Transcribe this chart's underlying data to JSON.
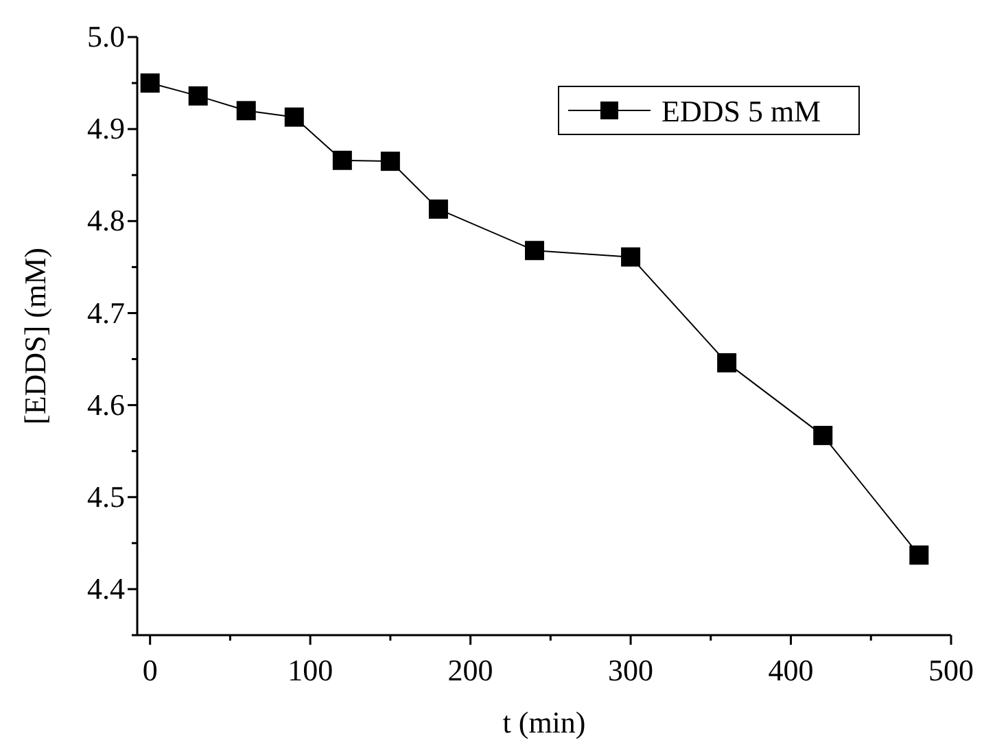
{
  "chart_data": {
    "type": "line",
    "xlabel": "t (min)",
    "ylabel": "[EDDS] (mM)",
    "x": [
      0,
      30,
      60,
      90,
      120,
      150,
      180,
      240,
      300,
      360,
      420,
      480
    ],
    "series": [
      {
        "name": "EDDS 5 mM",
        "color": "#000000",
        "values": [
          4.95,
          4.936,
          4.92,
          4.913,
          4.866,
          4.865,
          4.813,
          4.768,
          4.761,
          4.646,
          4.567,
          4.437
        ]
      }
    ],
    "xlim": [
      -8,
      500
    ],
    "xticks": [
      0,
      {
        "value": 50,
        "label": null
      },
      100,
      {
        "value": 150,
        "label": null
      },
      200,
      {
        "value": 250,
        "label": null
      },
      300,
      {
        "value": 350,
        "label": null
      },
      400,
      {
        "value": 450,
        "label": null
      },
      500
    ],
    "ylim": [
      4.35,
      5.0
    ],
    "yticks": [
      {
        "value": 4.35,
        "label": null
      },
      4.4,
      {
        "value": 4.45,
        "label": null
      },
      4.5,
      {
        "value": 4.55,
        "label": null
      },
      4.6,
      {
        "value": 4.65,
        "label": null
      },
      4.7,
      {
        "value": 4.75,
        "label": null
      },
      4.8,
      {
        "value": 4.85,
        "label": null
      },
      4.9,
      {
        "value": 4.95,
        "label": null
      },
      {
        "value": 5,
        "label": "5.0"
      }
    ],
    "grid": false,
    "legend": "top right",
    "marker": "square",
    "line_style": "solid"
  }
}
